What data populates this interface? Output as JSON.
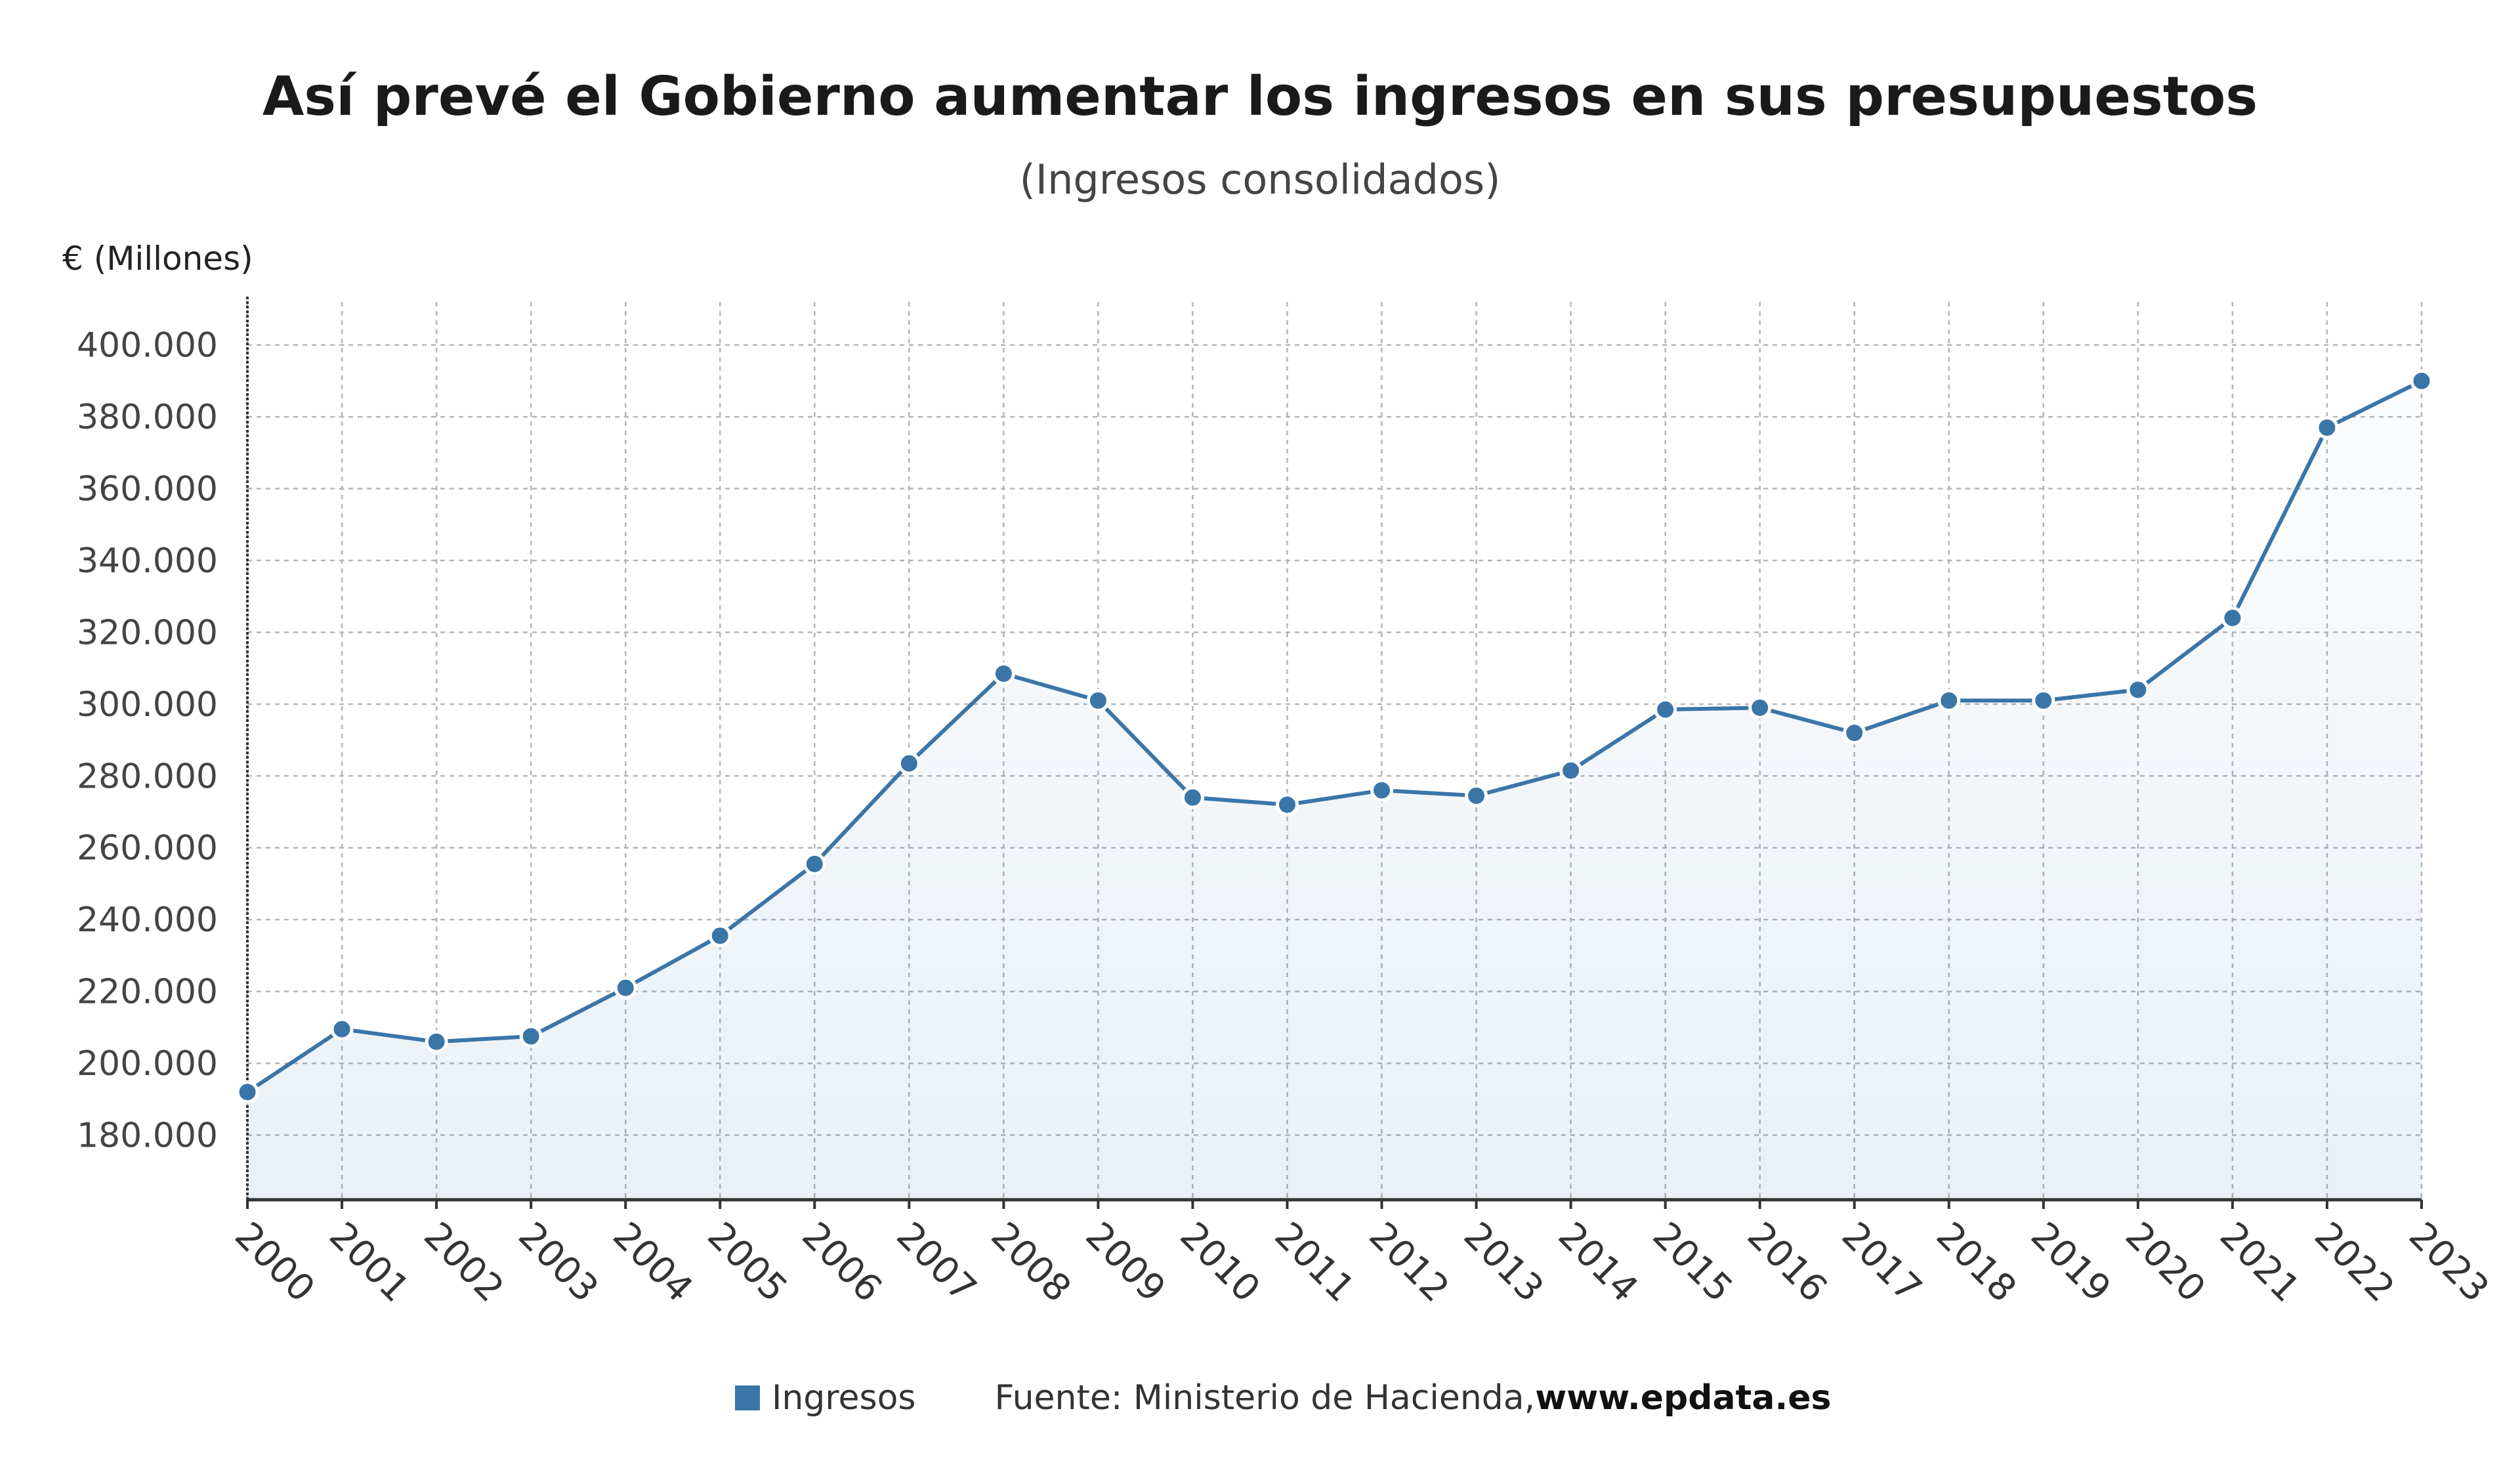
{
  "chart_data": {
    "type": "line",
    "title": "Así prevé el Gobierno aumentar los ingresos en sus presupuestos",
    "subtitle": "(Ingresos consolidados)",
    "ylabel": "€ (Millones)",
    "xlabel": "",
    "x": [
      "2000",
      "2001",
      "2002",
      "2003",
      "2004",
      "2005",
      "2006",
      "2007",
      "2008",
      "2009",
      "2010",
      "2011",
      "2012",
      "2013",
      "2014",
      "2015",
      "2016",
      "2017",
      "2018",
      "2019",
      "2020",
      "2021",
      "2022",
      "2023"
    ],
    "series": [
      {
        "name": "Ingresos",
        "color": "#3a75a8",
        "values": [
          192000,
          209500,
          206000,
          207500,
          221000,
          235500,
          255500,
          283500,
          308500,
          301000,
          274000,
          272000,
          276000,
          274500,
          281500,
          298500,
          299000,
          292000,
          301000,
          301000,
          304000,
          324000,
          377000,
          390000
        ]
      }
    ],
    "ylim": [
      162000,
      412000
    ],
    "yticks": [
      180000,
      200000,
      220000,
      240000,
      260000,
      280000,
      300000,
      320000,
      340000,
      360000,
      380000,
      400000
    ],
    "ytick_labels": [
      "180.000",
      "200.000",
      "220.000",
      "240.000",
      "260.000",
      "280.000",
      "300.000",
      "320.000",
      "340.000",
      "360.000",
      "380.000",
      "400.000"
    ],
    "grid": true,
    "legend": "bottom"
  },
  "legend": {
    "series_label": "Ingresos",
    "source_prefix": "Fuente: Ministerio de Hacienda, ",
    "source_link": "www.epdata.es"
  }
}
